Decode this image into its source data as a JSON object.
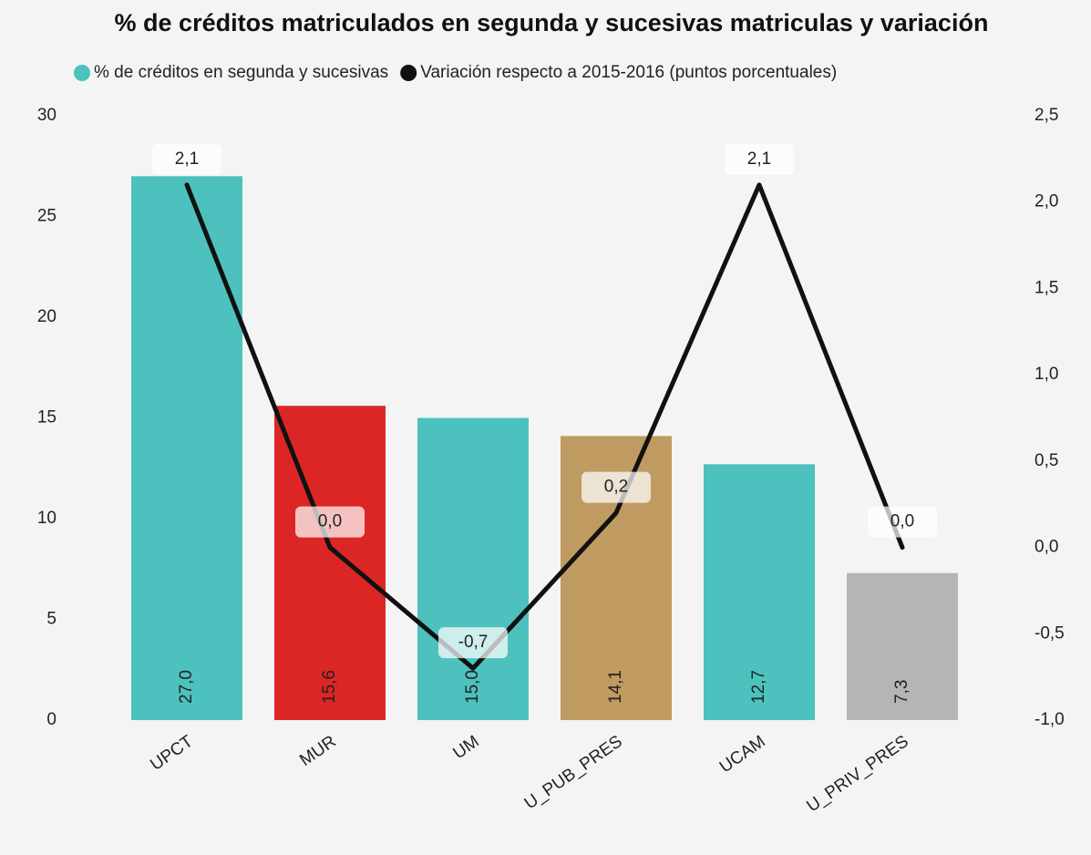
{
  "chart_data": {
    "type": "bar_line",
    "title": "% de créditos matriculados en segunda y sucesivas matriculas y variación",
    "categories": [
      "UPCT",
      "MUR",
      "UM",
      "U_PUB_PRES",
      "UCAM",
      "U_PRIV_PRES"
    ],
    "series": [
      {
        "name": "% de créditos en segunda y sucesivas",
        "type": "bar",
        "color": "#4dc1be",
        "colors": [
          "#4dc1be",
          "#dc2626",
          "#4dc1be",
          "#bf9b62",
          "#4dc1be",
          "#b5b5b5"
        ],
        "values": [
          27.0,
          15.6,
          15.0,
          14.1,
          12.7,
          7.3
        ],
        "value_labels": [
          "27,0",
          "15,6",
          "15,0",
          "14,1",
          "12,7",
          "7,3"
        ]
      },
      {
        "name": "Variación respecto a 2015-2016 (puntos porcentuales)",
        "type": "line",
        "axis": "y2",
        "color": "#111111",
        "values": [
          2.1,
          0.0,
          -0.7,
          0.2,
          2.1,
          0.0
        ],
        "value_labels": [
          "2,1",
          "0,0",
          "-0,7",
          "0,2",
          "2,1",
          "0,0"
        ]
      }
    ],
    "ylim": [
      0,
      30
    ],
    "yticks": [
      0,
      5,
      10,
      15,
      20,
      25,
      30
    ],
    "y2lim": [
      -1.0,
      2.5
    ],
    "y2ticks": [
      {
        "value": -1.0,
        "label": "-1,0"
      },
      {
        "value": -0.5,
        "label": "-0,5"
      },
      {
        "value": 0,
        "label": "0,0"
      },
      {
        "value": 0.5,
        "label": "0,5"
      },
      {
        "value": 1.0,
        "label": "1,0"
      },
      {
        "value": 1.5,
        "label": "1,5"
      },
      {
        "value": 2.0,
        "label": "2,0"
      },
      {
        "value": 2.5,
        "label": "2,5"
      }
    ],
    "grid": false
  }
}
